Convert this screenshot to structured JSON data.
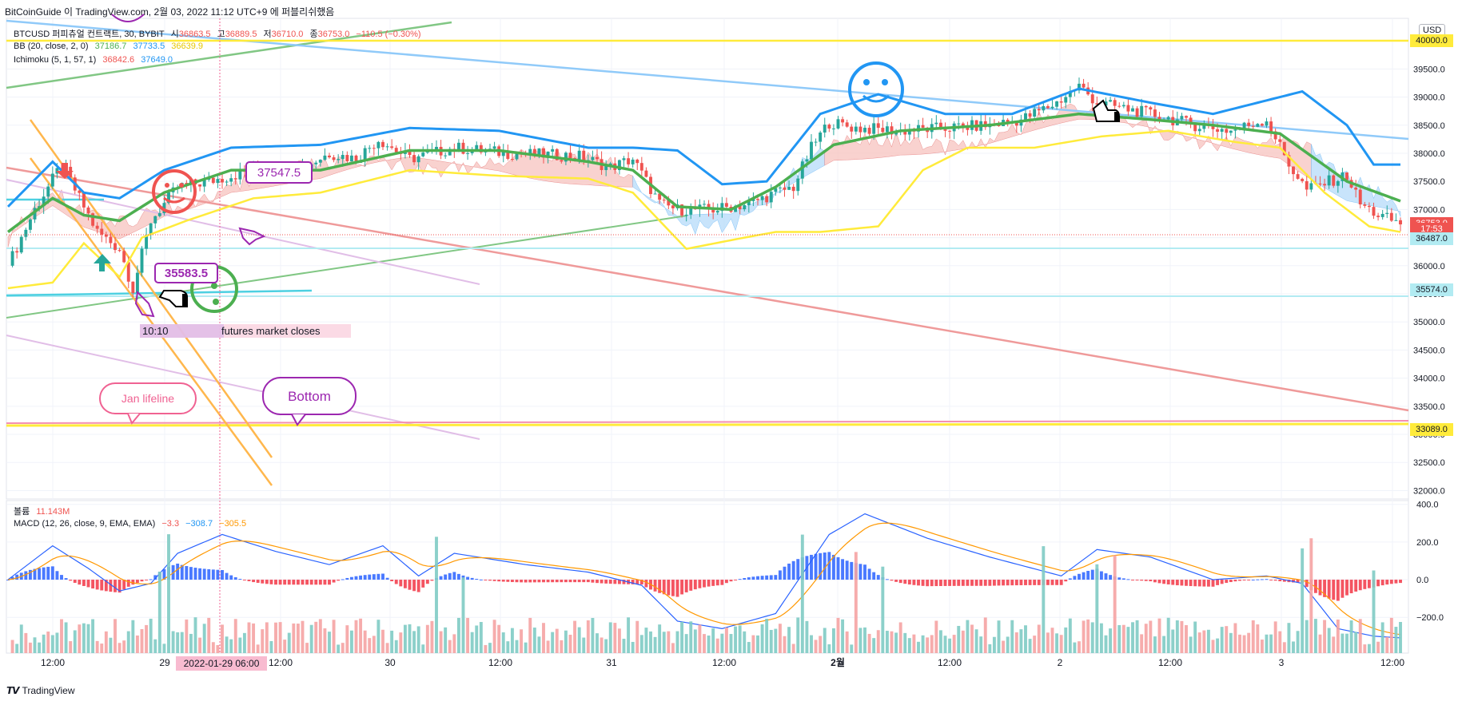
{
  "header": {
    "publisher": "BitCoinGuide 이 TradingView.com, 2월 03, 2022 11:12 UTC+9 에 퍼블리쉬했음"
  },
  "legend": {
    "symbol": "BTCUSD 퍼피츄얼 컨트랙트, 30, BYBIT",
    "open_label": "시",
    "open": "36863.5",
    "high_label": "고",
    "high": "36889.5",
    "low_label": "저",
    "low": "36710.0",
    "close_label": "종",
    "close": "36753.0",
    "change": "−110.5 (−0.30%)",
    "bb_label": "BB (20, close, 2, 0)",
    "bb_basis": "37186.7",
    "bb_upper": "37733.5",
    "bb_lower": "36639.9",
    "ichimoku_label": "Ichimoku (5, 1, 57, 1)",
    "ichimoku_a": "36842.6",
    "ichimoku_b": "37649.0",
    "volume_label": "볼륨",
    "volume_value": "11.143M",
    "macd_label": "MACD (12, 26, close, 9, EMA, EMA)",
    "macd_hist": "−3.3",
    "macd_line": "−308.7",
    "macd_signal": "−305.5"
  },
  "currency": "USD",
  "price_axis": {
    "ticks": [
      "40000.0",
      "39500.0",
      "39000.0",
      "38500.0",
      "38000.0",
      "37500.0",
      "37000.0",
      "36500.0",
      "36000.0",
      "35500.0",
      "35000.0",
      "34500.0",
      "34000.0",
      "33500.0",
      "33000.0",
      "32500.0",
      "32000.0"
    ],
    "tick_values": [
      40000,
      39500,
      39000,
      38500,
      38000,
      37500,
      37000,
      36500,
      36000,
      35500,
      35000,
      34500,
      34000,
      33500,
      33000,
      32500,
      32000
    ],
    "range": [
      31850,
      40400
    ]
  },
  "price_tags": [
    {
      "label": "36753.0",
      "value": 36753,
      "color": "#ef5350",
      "text_color": "#ffffff"
    },
    {
      "label": "17:53",
      "value": 36653,
      "color": "#ef5350",
      "text_color": "#ffffff"
    },
    {
      "label": "36487.0",
      "value": 36487,
      "color": "#b2ebf2",
      "text_color": "#131722"
    },
    {
      "label": "35574.0",
      "value": 35574,
      "color": "#b2ebf2",
      "text_color": "#131722"
    },
    {
      "label": "33089.0",
      "value": 33089,
      "color": "#ffeb3b",
      "text_color": "#131722"
    },
    {
      "label": "40000.0",
      "value": 40000,
      "color": "#ffeb3b",
      "text_color": "#131722"
    }
  ],
  "macd_axis": {
    "ticks": [
      "400.0",
      "200.0",
      "0.0",
      "−200.0"
    ],
    "tick_values": [
      400,
      200,
      0,
      -200
    ],
    "range": [
      -390,
      420
    ]
  },
  "time_axis": {
    "labels": [
      "12:00",
      "29",
      "12:00",
      "30",
      "12:00",
      "31",
      "12:00",
      "2월",
      "12:00",
      "2",
      "12:00",
      "3",
      "12:00"
    ],
    "bold": [
      false,
      false,
      false,
      false,
      false,
      false,
      false,
      true,
      false,
      false,
      false,
      false,
      false
    ],
    "hovered_label": "2022-01-29  06:00"
  },
  "annotations": {
    "label_37547": "37547.5",
    "label_35583": "35583.5",
    "time_label": "10:10",
    "futures_note": "futures market closes",
    "jan_lifeline": "Jan lifeline",
    "bottom": "Bottom"
  },
  "footer": {
    "brand": "TradingView"
  },
  "chart_data": {
    "type": "candlestick",
    "title": "BTCUSD 퍼피츄얼 컨트랙트, 30, BYBIT",
    "interval": "30m",
    "period": "2022-01-28 ~ 2022-02-03",
    "colors": {
      "up": "#26a69a",
      "down": "#ef5350",
      "bb_basis": "#4caf50",
      "bb_upper": "#2196f3",
      "bb_lower": "#ffeb3b"
    },
    "price_path": [
      [
        0,
        36000
      ],
      [
        6,
        37000
      ],
      [
        12,
        37800
      ],
      [
        16,
        37200
      ],
      [
        20,
        36600
      ],
      [
        25,
        36300
      ],
      [
        28,
        35590
      ],
      [
        32,
        36800
      ],
      [
        38,
        37400
      ],
      [
        45,
        37500
      ],
      [
        55,
        37700
      ],
      [
        65,
        37700
      ],
      [
        72,
        38000
      ],
      [
        78,
        37900
      ],
      [
        83,
        38250
      ],
      [
        90,
        37900
      ],
      [
        100,
        38100
      ],
      [
        112,
        38000
      ],
      [
        128,
        37950
      ],
      [
        135,
        37750
      ],
      [
        140,
        37900
      ],
      [
        146,
        37100
      ],
      [
        150,
        37000
      ],
      [
        158,
        37000
      ],
      [
        166,
        37100
      ],
      [
        172,
        37300
      ],
      [
        176,
        37400
      ],
      [
        180,
        38100
      ],
      [
        184,
        38550
      ],
      [
        190,
        38450
      ],
      [
        200,
        38400
      ],
      [
        210,
        38450
      ],
      [
        220,
        38500
      ],
      [
        227,
        38600
      ],
      [
        235,
        38900
      ],
      [
        240,
        39200
      ],
      [
        244,
        38900
      ],
      [
        250,
        38800
      ],
      [
        256,
        38700
      ],
      [
        266,
        38500
      ],
      [
        274,
        38400
      ],
      [
        282,
        38600
      ],
      [
        287,
        37800
      ],
      [
        291,
        37350
      ],
      [
        296,
        37500
      ],
      [
        300,
        37600
      ],
      [
        303,
        37100
      ],
      [
        307,
        36900
      ],
      [
        312,
        36753
      ]
    ],
    "bb_basis_path": [
      [
        0,
        36600
      ],
      [
        10,
        37200
      ],
      [
        17,
        36900
      ],
      [
        25,
        36800
      ],
      [
        35,
        37300
      ],
      [
        50,
        37700
      ],
      [
        70,
        37700
      ],
      [
        90,
        38050
      ],
      [
        110,
        38050
      ],
      [
        130,
        37850
      ],
      [
        140,
        37700
      ],
      [
        150,
        37050
      ],
      [
        162,
        37000
      ],
      [
        172,
        37400
      ],
      [
        185,
        38150
      ],
      [
        200,
        38400
      ],
      [
        220,
        38500
      ],
      [
        240,
        38700
      ],
      [
        256,
        38600
      ],
      [
        270,
        38500
      ],
      [
        285,
        38350
      ],
      [
        300,
        37500
      ],
      [
        312,
        37150
      ]
    ],
    "bb_upper_path": [
      [
        0,
        37050
      ],
      [
        10,
        37850
      ],
      [
        17,
        37300
      ],
      [
        25,
        37200
      ],
      [
        35,
        37700
      ],
      [
        50,
        38100
      ],
      [
        70,
        38150
      ],
      [
        90,
        38450
      ],
      [
        110,
        38400
      ],
      [
        130,
        38100
      ],
      [
        140,
        38100
      ],
      [
        150,
        38050
      ],
      [
        160,
        37450
      ],
      [
        170,
        37500
      ],
      [
        182,
        38700
      ],
      [
        195,
        39050
      ],
      [
        210,
        38700
      ],
      [
        225,
        38700
      ],
      [
        240,
        39150
      ],
      [
        256,
        38900
      ],
      [
        270,
        38700
      ],
      [
        280,
        38900
      ],
      [
        290,
        39100
      ],
      [
        300,
        38500
      ],
      [
        306,
        37800
      ],
      [
        312,
        37800
      ]
    ],
    "bb_lower_path": [
      [
        0,
        35600
      ],
      [
        10,
        35700
      ],
      [
        17,
        36400
      ],
      [
        25,
        35800
      ],
      [
        30,
        36500
      ],
      [
        40,
        36800
      ],
      [
        55,
        37200
      ],
      [
        70,
        37300
      ],
      [
        90,
        37700
      ],
      [
        110,
        37600
      ],
      [
        130,
        37550
      ],
      [
        140,
        37300
      ],
      [
        152,
        36300
      ],
      [
        165,
        36500
      ],
      [
        172,
        36600
      ],
      [
        182,
        36600
      ],
      [
        195,
        36700
      ],
      [
        205,
        37700
      ],
      [
        215,
        38100
      ],
      [
        230,
        38100
      ],
      [
        245,
        38300
      ],
      [
        260,
        38400
      ],
      [
        275,
        38200
      ],
      [
        285,
        38100
      ],
      [
        295,
        37300
      ],
      [
        305,
        36700
      ],
      [
        312,
        36600
      ]
    ],
    "volume_profile": "spikes near Jan 29 early hours, Jan 30 afternoon, Feb 2 and Feb 3 morning",
    "macd_path": [
      [
        0,
        0
      ],
      [
        10,
        180
      ],
      [
        18,
        60
      ],
      [
        25,
        -60
      ],
      [
        32,
        -20
      ],
      [
        38,
        140
      ],
      [
        48,
        240
      ],
      [
        60,
        150
      ],
      [
        72,
        80
      ],
      [
        84,
        180
      ],
      [
        92,
        20
      ],
      [
        100,
        140
      ],
      [
        116,
        80
      ],
      [
        130,
        40
      ],
      [
        142,
        -30
      ],
      [
        150,
        -220
      ],
      [
        160,
        -260
      ],
      [
        172,
        -180
      ],
      [
        184,
        240
      ],
      [
        192,
        350
      ],
      [
        206,
        220
      ],
      [
        220,
        120
      ],
      [
        236,
        20
      ],
      [
        244,
        160
      ],
      [
        256,
        120
      ],
      [
        270,
        0
      ],
      [
        282,
        20
      ],
      [
        290,
        -20
      ],
      [
        298,
        -260
      ],
      [
        306,
        -300
      ],
      [
        312,
        -309
      ]
    ]
  }
}
